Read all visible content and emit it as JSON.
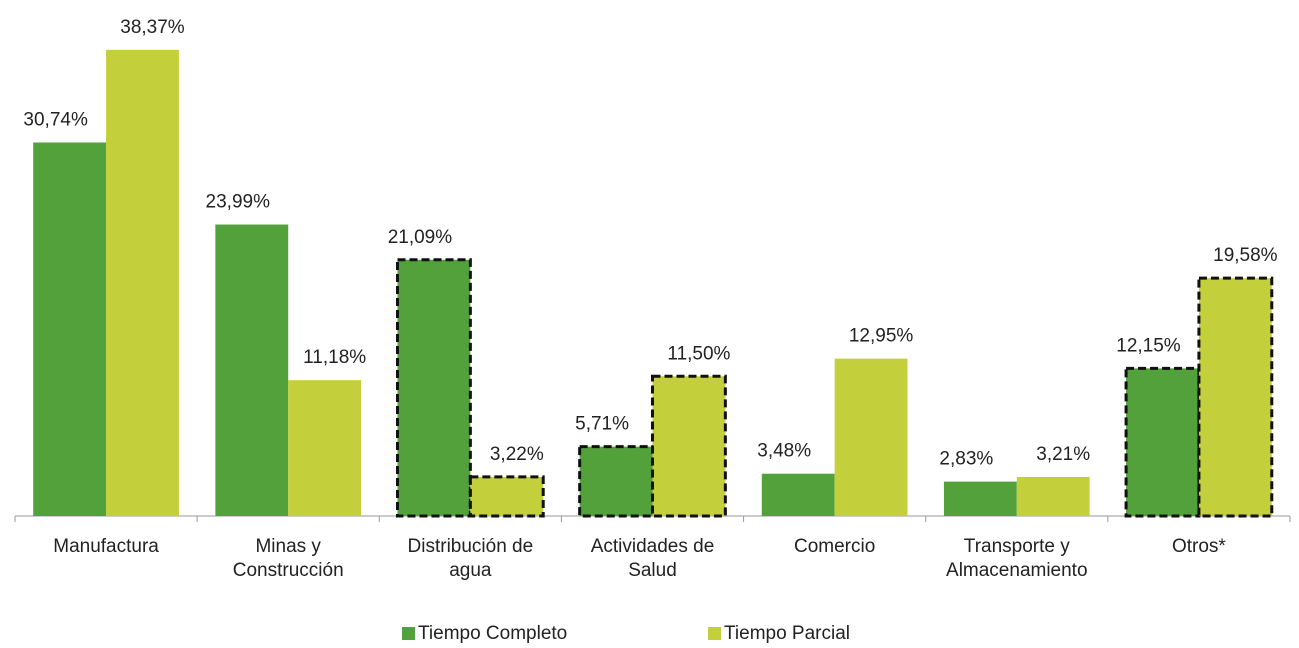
{
  "chart_data": {
    "type": "bar",
    "categories": [
      "Manufactura",
      "Minas y Construcción",
      "Distribución de agua",
      "Actividades de Salud",
      "Comercio",
      "Transporte y Almacenamiento",
      "Otros*"
    ],
    "series": [
      {
        "name": "Tiempo Completo",
        "color": "#53a13b",
        "values": [
          30.74,
          23.99,
          21.09,
          5.71,
          3.48,
          2.83,
          12.15
        ],
        "value_labels": [
          "30,74%",
          "23,99%",
          "21,09%",
          "5,71%",
          "3,48%",
          "2,83%",
          "12,15%"
        ]
      },
      {
        "name": "Tiempo Parcial",
        "color": "#c4d03b",
        "values": [
          38.37,
          11.18,
          3.22,
          11.5,
          12.95,
          3.21,
          19.58
        ],
        "value_labels": [
          "38,37%",
          "11,18%",
          "3,22%",
          "11,50%",
          "12,95%",
          "3,21%",
          "19,58%"
        ]
      }
    ],
    "ylim": [
      0,
      40
    ],
    "outlined_categories": [
      2,
      3,
      6
    ],
    "legend": "bottom"
  }
}
